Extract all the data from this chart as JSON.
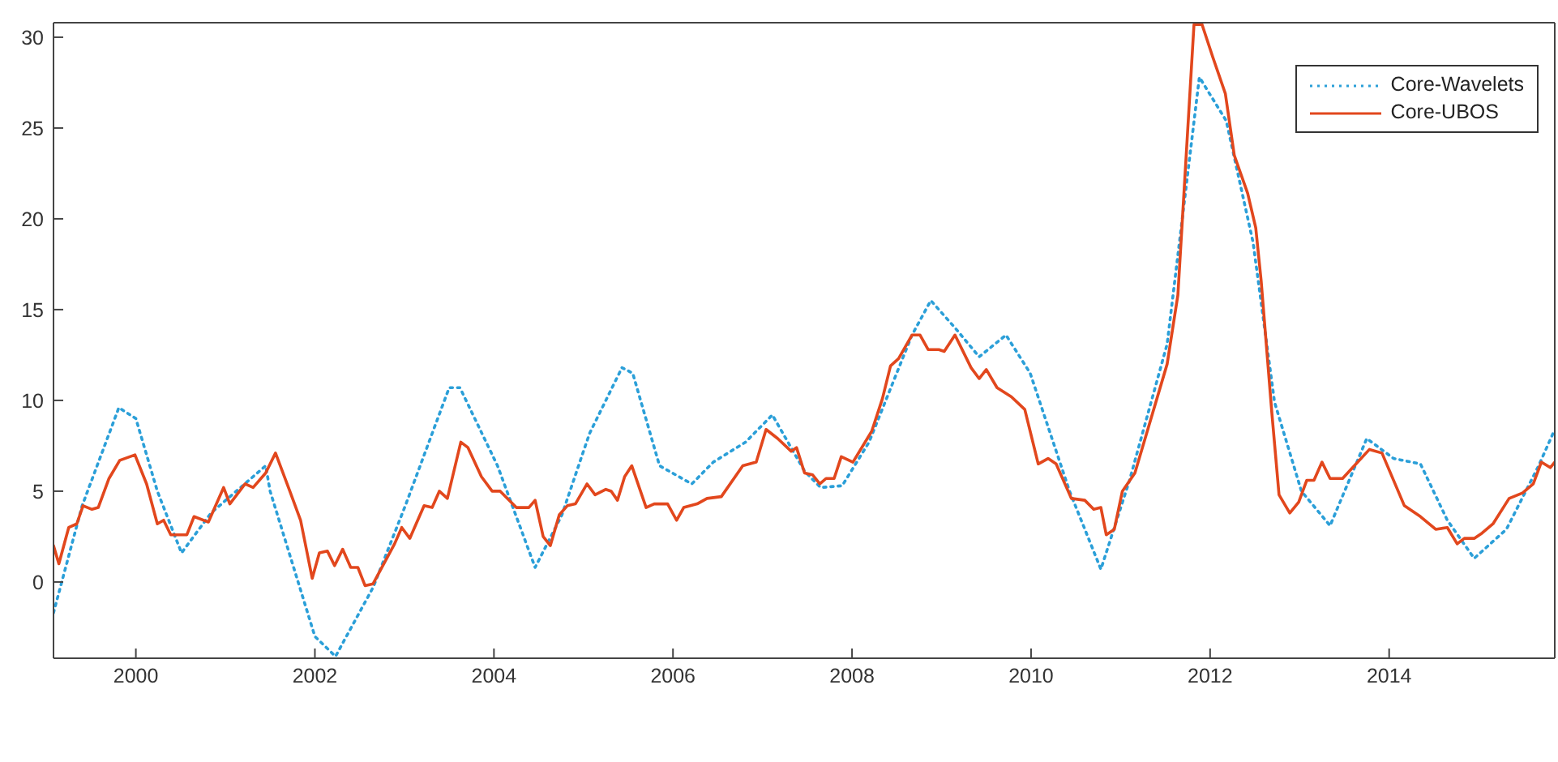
{
  "chart_data": {
    "type": "line",
    "xlim": [
      1999.08,
      2015.85
    ],
    "xticks": [
      2000,
      2002,
      2004,
      2006,
      2008,
      2010,
      2012,
      2014
    ],
    "ylim": [
      -4.2,
      30.8
    ],
    "yticks": [
      0,
      5,
      10,
      15,
      20,
      25,
      30
    ],
    "legend": "top right",
    "marker": "none",
    "series": [
      {
        "name": "Core-Wavelets",
        "color": "#2b9fd8",
        "line_style": "dotted",
        "x": [
          1999.08,
          1999.4,
          1999.81,
          2000.0,
          2000.24,
          2000.51,
          2000.84,
          2001.45,
          2001.5,
          2002.0,
          2002.23,
          2002.65,
          2003.01,
          2003.5,
          2003.62,
          2004.04,
          2004.46,
          2004.76,
          2005.0,
          2005.07,
          2005.43,
          2005.55,
          2005.85,
          2006.21,
          2006.45,
          2006.81,
          2007.11,
          2007.47,
          2007.65,
          2007.89,
          2008.19,
          2008.67,
          2008.88,
          2009.15,
          2009.42,
          2009.72,
          2009.99,
          2010.43,
          2010.78,
          2011.1,
          2011.52,
          2011.88,
          2012.18,
          2012.48,
          2012.72,
          2013.02,
          2013.34,
          2013.75,
          2014.05,
          2014.35,
          2014.65,
          2014.95,
          2015.31,
          2015.67,
          2015.85
        ],
        "values": [
          -1.7,
          4.2,
          9.6,
          9.0,
          5.0,
          1.6,
          3.8,
          6.4,
          5.0,
          -3.0,
          -4.1,
          -0.3,
          4.2,
          10.7,
          10.7,
          6.4,
          0.8,
          3.7,
          7.2,
          8.2,
          11.8,
          11.5,
          6.4,
          5.4,
          6.6,
          7.7,
          9.2,
          6.1,
          5.2,
          5.3,
          7.7,
          13.6,
          15.5,
          14.0,
          12.4,
          13.6,
          11.5,
          5.0,
          0.7,
          5.6,
          13.1,
          27.8,
          25.4,
          18.7,
          9.9,
          5.0,
          3.1,
          7.9,
          6.8,
          6.5,
          3.4,
          1.3,
          2.9,
          6.4,
          8.4
        ]
      },
      {
        "name": "Core-UBOS",
        "color": "#e2471d",
        "line_style": "solid",
        "x": [
          1999.08,
          1999.14,
          1999.25,
          1999.34,
          1999.41,
          1999.51,
          1999.58,
          1999.7,
          1999.82,
          1999.99,
          2000.12,
          2000.24,
          2000.31,
          2000.39,
          2000.57,
          2000.65,
          2000.81,
          2000.98,
          2001.05,
          2001.22,
          2001.31,
          2001.45,
          2001.56,
          2001.72,
          2001.84,
          2001.97,
          2002.05,
          2002.14,
          2002.22,
          2002.31,
          2002.4,
          2002.48,
          2002.56,
          2002.65,
          2002.89,
          2002.97,
          2003.06,
          2003.22,
          2003.31,
          2003.39,
          2003.48,
          2003.63,
          2003.71,
          2003.86,
          2003.98,
          2004.07,
          2004.25,
          2004.39,
          2004.46,
          2004.55,
          2004.63,
          2004.73,
          2004.82,
          2004.91,
          2005.04,
          2005.13,
          2005.25,
          2005.31,
          2005.38,
          2005.46,
          2005.54,
          2005.7,
          2005.79,
          2005.94,
          2006.04,
          2006.12,
          2006.27,
          2006.38,
          2006.54,
          2006.78,
          2006.93,
          2007.04,
          2007.17,
          2007.32,
          2007.38,
          2007.47,
          2007.56,
          2007.64,
          2007.71,
          2007.8,
          2007.88,
          2008.01,
          2008.22,
          2008.34,
          2008.43,
          2008.52,
          2008.67,
          2008.76,
          2008.85,
          2008.97,
          2009.03,
          2009.15,
          2009.33,
          2009.42,
          2009.5,
          2009.62,
          2009.78,
          2009.93,
          2010.08,
          2010.19,
          2010.28,
          2010.45,
          2010.6,
          2010.7,
          2010.78,
          2010.84,
          2010.93,
          2011.02,
          2011.16,
          2011.31,
          2011.52,
          2011.64,
          2011.82,
          2011.91,
          2012.03,
          2012.17,
          2012.27,
          2012.42,
          2012.51,
          2012.57,
          2012.69,
          2012.77,
          2012.89,
          2012.99,
          2013.08,
          2013.16,
          2013.25,
          2013.34,
          2013.48,
          2013.63,
          2013.78,
          2013.92,
          2014.17,
          2014.35,
          2014.52,
          2014.65,
          2014.76,
          2014.84,
          2014.95,
          2015.04,
          2015.16,
          2015.34,
          2015.49,
          2015.61,
          2015.7,
          2015.8,
          2015.85
        ],
        "values": [
          2.0,
          1.0,
          3.0,
          3.2,
          4.2,
          4.0,
          4.1,
          5.7,
          6.7,
          7.0,
          5.4,
          3.2,
          3.4,
          2.6,
          2.6,
          3.6,
          3.3,
          5.2,
          4.3,
          5.4,
          5.2,
          6.0,
          7.1,
          5.0,
          3.4,
          0.2,
          1.6,
          1.7,
          0.9,
          1.8,
          0.8,
          0.8,
          -0.2,
          -0.1,
          2.1,
          3.0,
          2.4,
          4.2,
          4.1,
          5.0,
          4.6,
          7.7,
          7.4,
          5.8,
          5.0,
          5.0,
          4.1,
          4.1,
          4.5,
          2.5,
          2.0,
          3.7,
          4.2,
          4.3,
          5.4,
          4.8,
          5.1,
          5.0,
          4.5,
          5.8,
          6.4,
          4.1,
          4.3,
          4.3,
          3.4,
          4.1,
          4.3,
          4.6,
          4.7,
          6.4,
          6.6,
          8.4,
          7.9,
          7.2,
          7.4,
          6.0,
          5.9,
          5.4,
          5.7,
          5.7,
          6.9,
          6.6,
          8.3,
          10.1,
          11.9,
          12.3,
          13.6,
          13.6,
          12.8,
          12.8,
          12.7,
          13.6,
          11.8,
          11.2,
          11.7,
          10.7,
          10.2,
          9.5,
          6.5,
          6.8,
          6.5,
          4.6,
          4.5,
          4.0,
          4.1,
          2.6,
          2.9,
          5.0,
          6.0,
          8.5,
          12.0,
          15.8,
          30.7,
          30.7,
          28.9,
          26.9,
          23.5,
          21.4,
          19.5,
          16.6,
          9.3,
          4.8,
          3.8,
          4.4,
          5.6,
          5.6,
          6.6,
          5.7,
          5.7,
          6.5,
          7.3,
          7.1,
          4.2,
          3.6,
          2.9,
          3.0,
          2.1,
          2.4,
          2.4,
          2.7,
          3.2,
          4.6,
          4.9,
          5.4,
          6.6,
          6.3,
          6.6
        ]
      }
    ]
  }
}
